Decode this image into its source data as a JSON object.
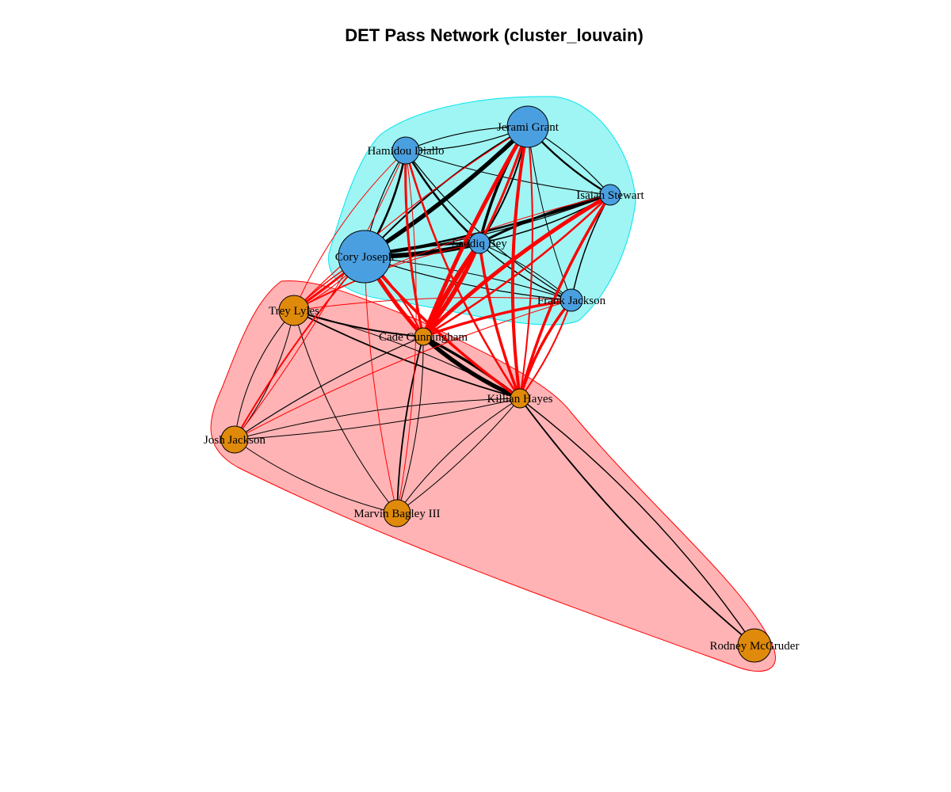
{
  "title": "DET Pass Network (cluster_louvain)",
  "colors": {
    "cluster_a_fill": "#9ff5f3",
    "cluster_a_border": "#00e5ee",
    "cluster_b_fill": "#ffb3b5",
    "cluster_b_border": "#ff0000",
    "node_a": "#4a9fe0",
    "node_b": "#e08a0b",
    "edge_within": "#000000",
    "edge_between": "#ff0000"
  },
  "nodes": [
    {
      "id": "grant",
      "label": "Jerami Grant",
      "cluster": "a"
    },
    {
      "id": "diallo",
      "label": "Hamidou Diallo",
      "cluster": "a"
    },
    {
      "id": "stewart",
      "label": "Isaiah Stewart",
      "cluster": "a"
    },
    {
      "id": "bey",
      "label": "Saddiq Bey",
      "cluster": "a"
    },
    {
      "id": "joseph",
      "label": "Cory Joseph",
      "cluster": "a"
    },
    {
      "id": "fjackson",
      "label": "Frank Jackson",
      "cluster": "a"
    },
    {
      "id": "lyles",
      "label": "Trey Lyles",
      "cluster": "b"
    },
    {
      "id": "cunningham",
      "label": "Cade Cunningham",
      "cluster": "b"
    },
    {
      "id": "hayes",
      "label": "Killian Hayes",
      "cluster": "b"
    },
    {
      "id": "jjackson",
      "label": "Josh Jackson",
      "cluster": "b"
    },
    {
      "id": "bagley",
      "label": "Marvin Bagley III",
      "cluster": "b"
    },
    {
      "id": "mcgruder",
      "label": "Rodney McGruder",
      "cluster": "b"
    }
  ]
}
